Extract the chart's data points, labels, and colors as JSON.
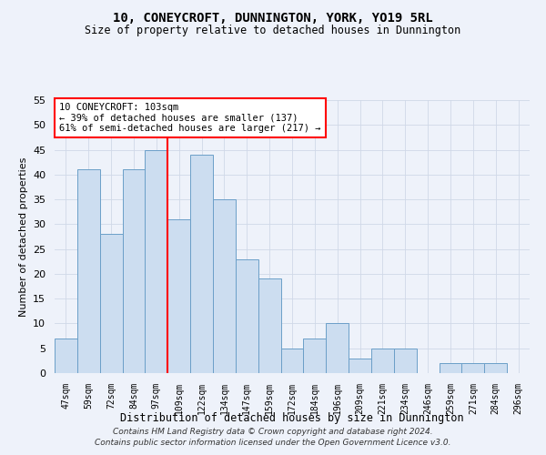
{
  "title1": "10, CONEYCROFT, DUNNINGTON, YORK, YO19 5RL",
  "title2": "Size of property relative to detached houses in Dunnington",
  "xlabel": "Distribution of detached houses by size in Dunnington",
  "ylabel": "Number of detached properties",
  "categories": [
    "47sqm",
    "59sqm",
    "72sqm",
    "84sqm",
    "97sqm",
    "109sqm",
    "122sqm",
    "134sqm",
    "147sqm",
    "159sqm",
    "172sqm",
    "184sqm",
    "196sqm",
    "209sqm",
    "221sqm",
    "234sqm",
    "246sqm",
    "259sqm",
    "271sqm",
    "284sqm",
    "296sqm"
  ],
  "values": [
    7,
    41,
    28,
    41,
    45,
    31,
    44,
    35,
    23,
    19,
    5,
    7,
    10,
    3,
    5,
    5,
    0,
    2,
    2,
    2,
    0
  ],
  "bar_color": "#ccddf0",
  "bar_edge_color": "#6b9fc8",
  "red_line_x": 4.5,
  "annotation_title": "10 CONEYCROFT: 103sqm",
  "annotation_line1": "← 39% of detached houses are smaller (137)",
  "annotation_line2": "61% of semi-detached houses are larger (217) →",
  "ylim": [
    0,
    55
  ],
  "yticks": [
    0,
    5,
    10,
    15,
    20,
    25,
    30,
    35,
    40,
    45,
    50,
    55
  ],
  "footnote1": "Contains HM Land Registry data © Crown copyright and database right 2024.",
  "footnote2": "Contains public sector information licensed under the Open Government Licence v3.0.",
  "background_color": "#eef2fa",
  "plot_background": "#eef2fa",
  "grid_color": "#d0d8e8"
}
